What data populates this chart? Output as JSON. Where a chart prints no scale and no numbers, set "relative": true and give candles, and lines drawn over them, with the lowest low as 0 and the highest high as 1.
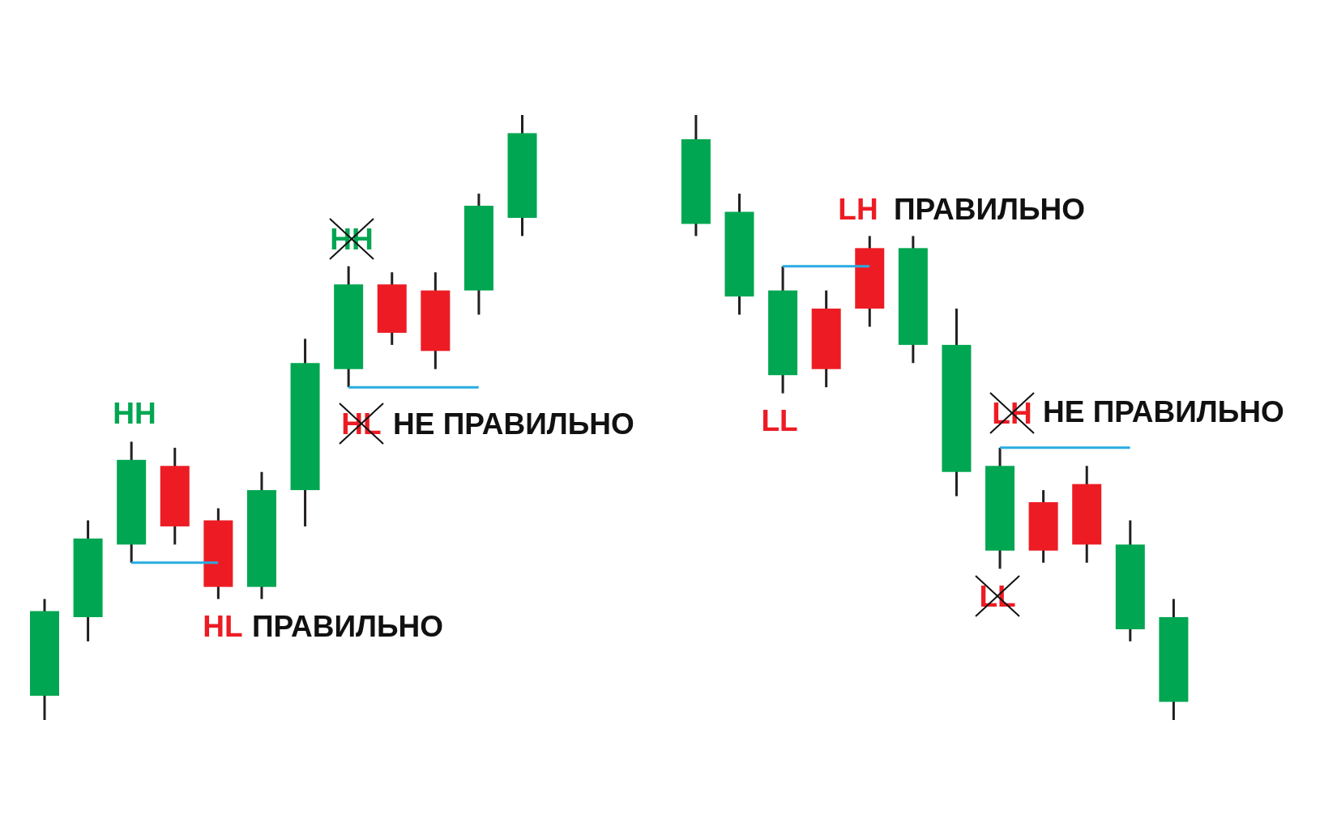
{
  "chart_data": {
    "type": "candlestick",
    "relative": true,
    "categories": [
      null,
      null,
      null,
      null,
      null,
      null,
      null,
      null,
      null,
      null,
      null,
      null,
      null,
      null,
      null,
      null,
      null,
      null,
      null,
      null,
      null,
      null,
      null,
      null,
      null,
      null,
      null
    ],
    "ohlc": [
      [
        0.04,
        0.2,
        0,
        0.18
      ],
      [
        0.17,
        0.33,
        0.13,
        0.3
      ],
      [
        0.29,
        0.46,
        0.26,
        0.43
      ],
      [
        0.42,
        0.45,
        0.29,
        0.32
      ],
      [
        0.33,
        0.35,
        0.2,
        0.22
      ],
      [
        0.22,
        0.41,
        0.2,
        0.38
      ],
      [
        0.38,
        0.63,
        0.32,
        0.59
      ],
      [
        0.58,
        0.75,
        0.55,
        0.72
      ],
      [
        0.72,
        0.74,
        0.62,
        0.64
      ],
      [
        0.71,
        0.74,
        0.58,
        0.61
      ],
      [
        0.71,
        0.87,
        0.67,
        0.85
      ],
      [
        0.83,
        1,
        0.8,
        0.97
      ],
      null,
      null,
      null,
      [
        0.82,
        1,
        0.8,
        0.96
      ],
      [
        0.7,
        0.87,
        0.67,
        0.84
      ],
      [
        0.57,
        0.75,
        0.54,
        0.71
      ],
      [
        0.68,
        0.71,
        0.55,
        0.58
      ],
      [
        0.78,
        0.8,
        0.65,
        0.68
      ],
      [
        0.62,
        0.8,
        0.59,
        0.78
      ],
      [
        0.41,
        0.68,
        0.37,
        0.62
      ],
      [
        0.28,
        0.45,
        0.25,
        0.42
      ],
      [
        0.36,
        0.38,
        0.26,
        0.28
      ],
      [
        0.39,
        0.42,
        0.26,
        0.29
      ],
      [
        0.15,
        0.33,
        0.13,
        0.29
      ],
      [
        0.03,
        0.2,
        0,
        0.17
      ]
    ],
    "colors": [
      "#00a651",
      "#00a651",
      "#00a651",
      "#ed1c24",
      "#ed1c24",
      "#00a651",
      "#00a651",
      "#00a651",
      "#ed1c24",
      "#ed1c24",
      "#00a651",
      "#00a651",
      null,
      null,
      null,
      "#00a651",
      "#00a651",
      "#00a651",
      "#ed1c24",
      "#ed1c24",
      "#00a651",
      "#00a651",
      "#00a651",
      "#ed1c24",
      "#ed1c24",
      "#00a651",
      "#00a651"
    ],
    "series": [
      {
        "type": "line",
        "color": "#29abe2",
        "values": [
          null,
          null,
          0.26,
          0.26,
          0.26,
          null,
          null,
          null,
          null,
          null,
          null,
          null,
          null,
          null,
          null,
          null,
          null,
          null,
          null,
          null,
          null,
          null,
          null,
          null,
          null,
          null,
          null
        ]
      },
      {
        "type": "line",
        "color": "#29abe2",
        "values": [
          null,
          null,
          null,
          null,
          null,
          null,
          null,
          0.55,
          0.55,
          0.55,
          0.55,
          null,
          null,
          null,
          null,
          null,
          null,
          null,
          null,
          null,
          null,
          null,
          null,
          null,
          null,
          null,
          null
        ]
      },
      {
        "type": "line",
        "color": "#29abe2",
        "values": [
          null,
          null,
          null,
          null,
          null,
          null,
          null,
          null,
          null,
          null,
          null,
          null,
          null,
          null,
          null,
          null,
          null,
          0.75,
          0.75,
          0.75,
          null,
          null,
          null,
          null,
          null,
          null,
          null
        ]
      },
      {
        "type": "line",
        "color": "#29abe2",
        "values": [
          null,
          null,
          null,
          null,
          null,
          null,
          null,
          null,
          null,
          null,
          null,
          null,
          null,
          null,
          null,
          null,
          null,
          null,
          null,
          null,
          null,
          null,
          0.45,
          0.45,
          0.45,
          0.45,
          null
        ]
      }
    ],
    "annotations": [
      "HH",
      "HL",
      "ПРАВИЛЬНО",
      "HH",
      "HL",
      "НЕ ПРАВИЛЬНО",
      "LH",
      "ПРАВИЛЬНО",
      "LL",
      "LH",
      "НЕ ПРАВИЛЬНО",
      "LL"
    ]
  }
}
